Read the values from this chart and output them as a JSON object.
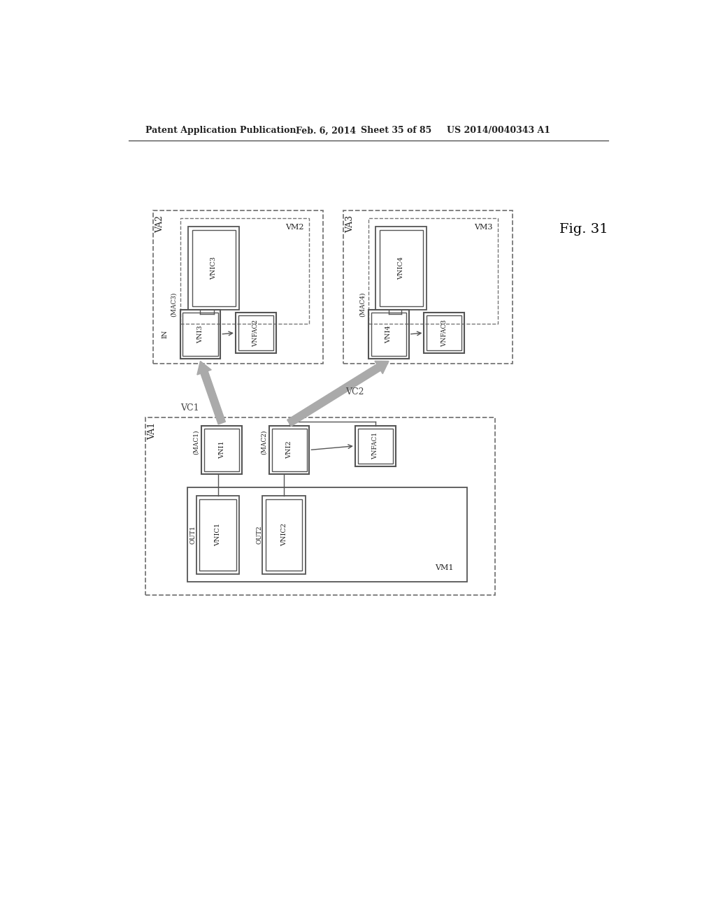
{
  "bg_color": "#ffffff",
  "header_text": "Patent Application Publication",
  "header_date": "Feb. 6, 2014",
  "header_sheet": "Sheet 35 of 85",
  "header_patent": "US 2014/0040343 A1",
  "fig_label": "Fig. 31",
  "line_color": "#555555",
  "dash_color": "#777777",
  "arrow_color": "#888888",
  "text_color": "#222222"
}
